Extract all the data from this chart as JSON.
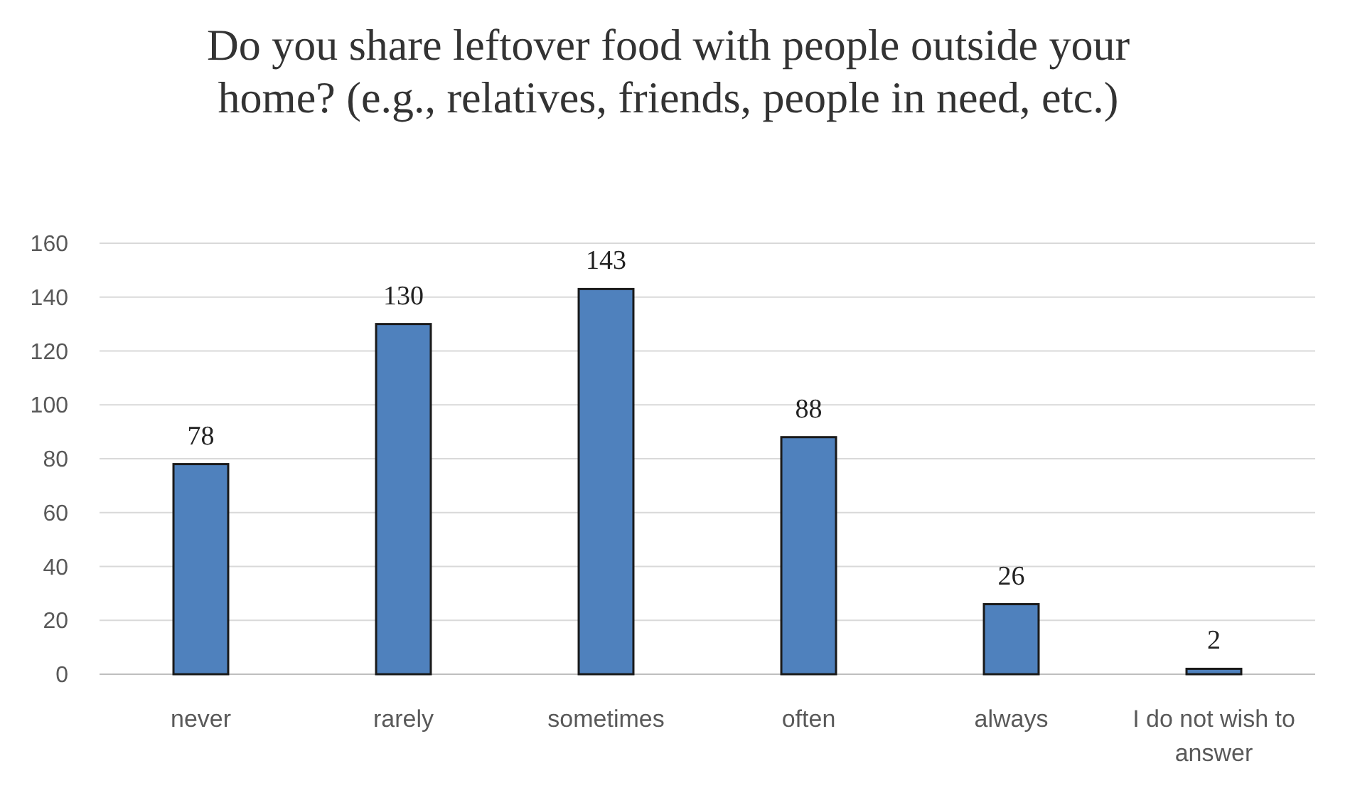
{
  "chart_data": {
    "type": "bar",
    "title": "Do you share leftover food with people outside your home? (e.g., relatives, friends, people in need, etc.)",
    "categories": [
      "never",
      "rarely",
      "sometimes",
      "often",
      "always",
      "I do not wish to answer"
    ],
    "values": [
      78,
      130,
      143,
      88,
      26,
      2
    ],
    "color": "#4f81bd",
    "ylim": [
      0,
      160
    ],
    "yticks": [
      0,
      20,
      40,
      60,
      80,
      100,
      120,
      140,
      160
    ],
    "grid": "y",
    "data_labels": true
  }
}
